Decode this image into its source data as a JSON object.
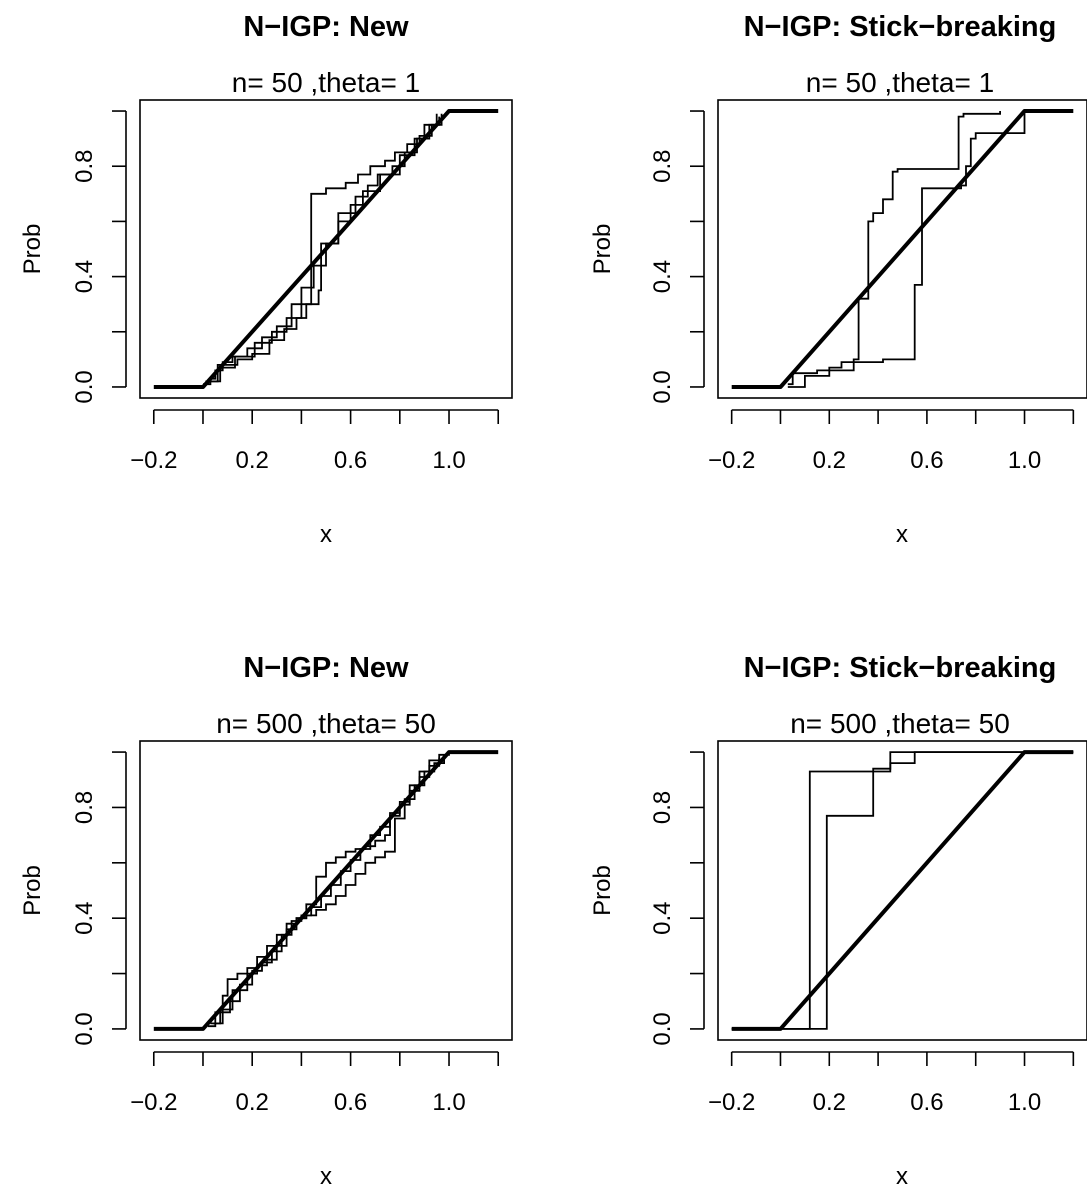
{
  "chart_data": [
    {
      "type": "line",
      "title": "N−IGP: New",
      "subtitle": "n= 50 ,theta= 1",
      "xlabel": "x",
      "ylabel": "Prob",
      "xlim": [
        -0.2,
        1.2
      ],
      "ylim": [
        0,
        1
      ],
      "xticks": [
        -0.2,
        0.0,
        0.2,
        0.4,
        0.6,
        0.8,
        1.0,
        1.2
      ],
      "xtick_labels": [
        "−0.2",
        "",
        "0.2",
        "",
        "0.6",
        "",
        "1.0",
        ""
      ],
      "yticks": [
        0.0,
        0.2,
        0.4,
        0.6,
        0.8,
        1.0
      ],
      "ytick_labels": [
        "0.0",
        "",
        "0.4",
        "",
        "0.8",
        ""
      ],
      "grid": false,
      "series": [
        {
          "style": "thick",
          "x": [
            -0.2,
            0.0,
            1.0,
            1.2
          ],
          "y": [
            0.0,
            0.0,
            1.0,
            1.0
          ]
        },
        {
          "style": "step",
          "x": [
            0.0,
            0.03,
            0.05,
            0.08,
            0.12,
            0.18,
            0.24,
            0.3,
            0.36,
            0.4,
            0.45,
            0.5,
            0.55,
            0.6,
            0.65,
            0.72,
            0.8,
            0.86,
            0.9,
            0.95
          ],
          "y": [
            0.01,
            0.03,
            0.06,
            0.09,
            0.11,
            0.14,
            0.18,
            0.22,
            0.3,
            0.36,
            0.44,
            0.52,
            0.6,
            0.66,
            0.71,
            0.77,
            0.84,
            0.9,
            0.95,
            0.99
          ]
        },
        {
          "style": "step",
          "x": [
            0.01,
            0.06,
            0.14,
            0.2,
            0.27,
            0.33,
            0.38,
            0.42,
            0.44,
            0.5,
            0.58,
            0.63,
            0.68,
            0.74,
            0.78,
            0.83,
            0.88,
            0.93,
            0.97
          ],
          "y": [
            0.02,
            0.08,
            0.1,
            0.12,
            0.17,
            0.21,
            0.25,
            0.3,
            0.7,
            0.72,
            0.74,
            0.77,
            0.8,
            0.82,
            0.85,
            0.88,
            0.91,
            0.95,
            0.99
          ]
        },
        {
          "style": "step",
          "x": [
            0.02,
            0.07,
            0.13,
            0.21,
            0.28,
            0.34,
            0.4,
            0.47,
            0.48,
            0.55,
            0.62,
            0.67,
            0.71,
            0.77,
            0.82,
            0.87,
            0.92,
            0.96
          ],
          "y": [
            0.02,
            0.07,
            0.11,
            0.16,
            0.2,
            0.25,
            0.3,
            0.35,
            0.52,
            0.63,
            0.69,
            0.73,
            0.77,
            0.8,
            0.85,
            0.9,
            0.95,
            0.98
          ]
        }
      ]
    },
    {
      "type": "line",
      "title": "N−IGP: Stick−breaking",
      "subtitle": "n= 50 ,theta= 1",
      "xlabel": "x",
      "ylabel": "Prob",
      "xlim": [
        -0.2,
        1.2
      ],
      "ylim": [
        0,
        1
      ],
      "xticks": [
        -0.2,
        0.0,
        0.2,
        0.4,
        0.6,
        0.8,
        1.0,
        1.2
      ],
      "xtick_labels": [
        "−0.2",
        "",
        "0.2",
        "",
        "0.6",
        "",
        "1.0",
        ""
      ],
      "yticks": [
        0.0,
        0.2,
        0.4,
        0.6,
        0.8,
        1.0
      ],
      "ytick_labels": [
        "0.0",
        "",
        "0.4",
        "",
        "0.8",
        ""
      ],
      "grid": false,
      "series": [
        {
          "style": "thick",
          "x": [
            -0.2,
            0.0,
            1.0,
            1.2
          ],
          "y": [
            0.0,
            0.0,
            1.0,
            1.0
          ]
        },
        {
          "style": "step",
          "x": [
            0.03,
            0.05,
            0.15,
            0.2,
            0.25,
            0.3,
            0.32,
            0.36,
            0.38,
            0.42,
            0.46,
            0.48,
            0.6,
            0.73,
            0.75,
            0.9
          ],
          "y": [
            0.01,
            0.05,
            0.06,
            0.07,
            0.09,
            0.1,
            0.32,
            0.6,
            0.63,
            0.68,
            0.78,
            0.79,
            0.79,
            0.98,
            0.99,
            1.0
          ]
        },
        {
          "style": "step",
          "x": [
            0.03,
            0.1,
            0.2,
            0.3,
            0.42,
            0.52,
            0.55,
            0.58,
            0.71,
            0.74,
            0.76,
            0.78,
            0.8,
            1.0
          ],
          "y": [
            0.0,
            0.04,
            0.06,
            0.09,
            0.1,
            0.1,
            0.37,
            0.72,
            0.72,
            0.73,
            0.8,
            0.9,
            0.92,
            1.0
          ]
        }
      ]
    },
    {
      "type": "line",
      "title": "N−IGP: New",
      "subtitle": "n= 500 ,theta= 50",
      "xlabel": "x",
      "ylabel": "Prob",
      "xlim": [
        -0.2,
        1.2
      ],
      "ylim": [
        0,
        1
      ],
      "xticks": [
        -0.2,
        0.0,
        0.2,
        0.4,
        0.6,
        0.8,
        1.0,
        1.2
      ],
      "xtick_labels": [
        "−0.2",
        "",
        "0.2",
        "",
        "0.6",
        "",
        "1.0",
        ""
      ],
      "yticks": [
        0.0,
        0.2,
        0.4,
        0.6,
        0.8,
        1.0
      ],
      "ytick_labels": [
        "0.0",
        "",
        "0.4",
        "",
        "0.8",
        ""
      ],
      "grid": false,
      "series": [
        {
          "style": "thick",
          "x": [
            -0.2,
            0.0,
            1.0,
            1.2
          ],
          "y": [
            0.0,
            0.0,
            1.0,
            1.0
          ]
        },
        {
          "style": "step",
          "x": [
            0.02,
            0.05,
            0.08,
            0.1,
            0.14,
            0.18,
            0.22,
            0.26,
            0.3,
            0.34,
            0.38,
            0.42,
            0.46,
            0.5,
            0.54,
            0.58,
            0.62,
            0.66,
            0.7,
            0.74,
            0.76,
            0.8,
            0.84,
            0.88,
            0.92,
            0.96,
            1.0
          ],
          "y": [
            0.01,
            0.06,
            0.12,
            0.18,
            0.2,
            0.22,
            0.26,
            0.3,
            0.34,
            0.38,
            0.4,
            0.45,
            0.55,
            0.6,
            0.62,
            0.64,
            0.65,
            0.66,
            0.68,
            0.7,
            0.78,
            0.82,
            0.88,
            0.93,
            0.97,
            0.99,
            1.0
          ]
        },
        {
          "style": "step",
          "x": [
            0.03,
            0.07,
            0.12,
            0.18,
            0.22,
            0.26,
            0.3,
            0.34,
            0.38,
            0.42,
            0.46,
            0.5,
            0.54,
            0.58,
            0.62,
            0.66,
            0.7,
            0.74,
            0.78,
            0.82,
            0.86,
            0.9,
            0.94,
            0.98
          ],
          "y": [
            0.02,
            0.07,
            0.14,
            0.2,
            0.23,
            0.25,
            0.3,
            0.36,
            0.4,
            0.41,
            0.43,
            0.45,
            0.48,
            0.52,
            0.56,
            0.6,
            0.62,
            0.64,
            0.76,
            0.83,
            0.88,
            0.93,
            0.96,
            0.99
          ]
        },
        {
          "style": "step",
          "x": [
            0.04,
            0.08,
            0.11,
            0.15,
            0.2,
            0.24,
            0.28,
            0.32,
            0.36,
            0.4,
            0.44,
            0.48,
            0.52,
            0.56,
            0.6,
            0.64,
            0.68,
            0.72,
            0.76,
            0.8,
            0.84,
            0.88,
            0.92,
            0.96
          ],
          "y": [
            0.02,
            0.06,
            0.1,
            0.16,
            0.21,
            0.24,
            0.28,
            0.34,
            0.39,
            0.41,
            0.44,
            0.48,
            0.52,
            0.57,
            0.61,
            0.65,
            0.7,
            0.73,
            0.77,
            0.81,
            0.86,
            0.91,
            0.95,
            0.98
          ]
        }
      ]
    },
    {
      "type": "line",
      "title": "N−IGP: Stick−breaking",
      "subtitle": "n= 500 ,theta= 50",
      "xlabel": "x",
      "ylabel": "Prob",
      "xlim": [
        -0.2,
        1.2
      ],
      "ylim": [
        0,
        1
      ],
      "xticks": [
        -0.2,
        0.0,
        0.2,
        0.4,
        0.6,
        0.8,
        1.0,
        1.2
      ],
      "xtick_labels": [
        "−0.2",
        "",
        "0.2",
        "",
        "0.6",
        "",
        "1.0",
        ""
      ],
      "yticks": [
        0.0,
        0.2,
        0.4,
        0.6,
        0.8,
        1.0
      ],
      "ytick_labels": [
        "0.0",
        "",
        "0.4",
        "",
        "0.8",
        ""
      ],
      "grid": false,
      "series": [
        {
          "style": "thick",
          "x": [
            -0.2,
            0.0,
            1.0,
            1.2
          ],
          "y": [
            0.0,
            0.0,
            1.0,
            1.0
          ]
        },
        {
          "style": "step",
          "x": [
            -0.2,
            0.12,
            0.12,
            0.45,
            0.45,
            1.2
          ],
          "y": [
            0.0,
            0.0,
            0.93,
            0.93,
            1.0,
            1.0
          ]
        },
        {
          "style": "step",
          "x": [
            -0.2,
            0.19,
            0.19,
            0.38,
            0.38,
            0.45,
            0.45,
            0.55,
            0.55,
            1.2
          ],
          "y": [
            0.0,
            0.0,
            0.77,
            0.77,
            0.94,
            0.94,
            0.96,
            0.96,
            1.0,
            1.0
          ]
        }
      ]
    }
  ]
}
